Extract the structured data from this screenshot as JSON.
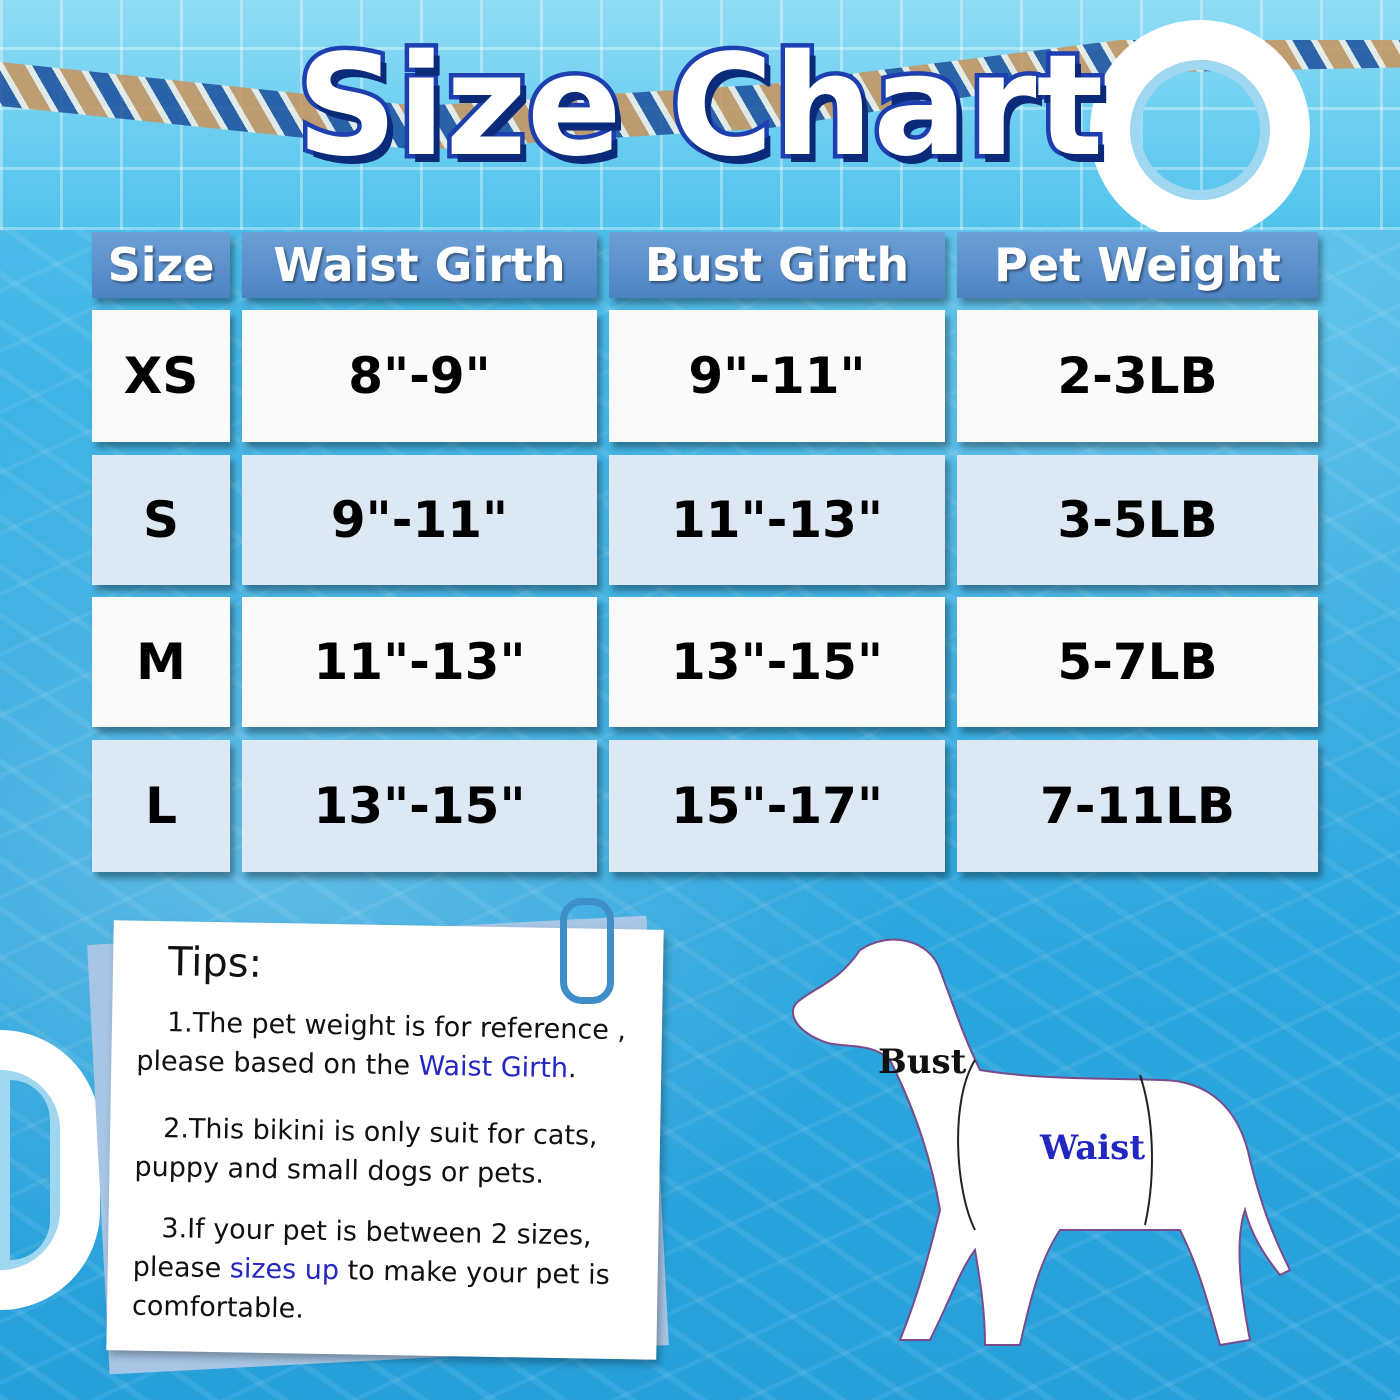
{
  "title": "Size Chart",
  "table": {
    "headers": [
      "Size",
      "Waist Girth",
      "Bust Girth",
      "Pet Weight"
    ],
    "rows": [
      [
        "XS",
        "8\"-9\"",
        "9\"-11\"",
        "2-3LB"
      ],
      [
        "S",
        "9\"-11\"",
        "11\"-13\"",
        "3-5LB"
      ],
      [
        "M",
        "11\"-13\"",
        "13\"-15\"",
        "5-7LB"
      ],
      [
        "L",
        "13\"-15\"",
        "15\"-17\"",
        "7-11LB"
      ]
    ]
  },
  "tips": {
    "heading": "Tips:",
    "tip1_a": "1.The pet weight is for reference , please based on the ",
    "tip1_highlight": "Waist Girth",
    "tip1_b": ".",
    "tip2": "2.This bikini is only suit for cats, puppy and small dogs or pets.",
    "tip3_a": "3.If your pet is between 2 sizes, please ",
    "tip3_highlight": "sizes up",
    "tip3_b": " to make your pet is comfortable."
  },
  "diagram": {
    "bust_label": "Bust",
    "waist_label": "Waist"
  },
  "colors": {
    "header": "#5b8fc9",
    "highlight": "#2426c2",
    "title_outline": "#1d3fb0"
  }
}
